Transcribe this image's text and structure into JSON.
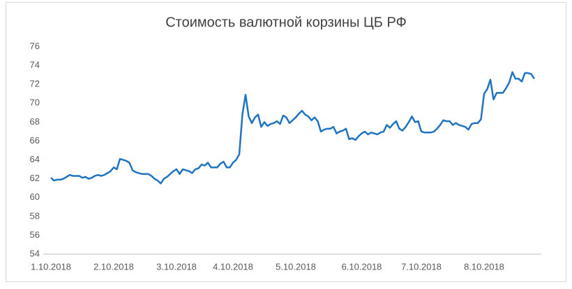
{
  "chart_data": {
    "type": "line",
    "title": "Стоимость валютной корзины ЦБ РФ",
    "categories": [
      "1.10.2018",
      null,
      null,
      null,
      null,
      null,
      null,
      null,
      null,
      null,
      null,
      null,
      null,
      null,
      null,
      null,
      null,
      null,
      null,
      null,
      "2.10.2018",
      null,
      null,
      null,
      null,
      null,
      null,
      null,
      null,
      null,
      null,
      null,
      null,
      null,
      null,
      null,
      null,
      null,
      null,
      null,
      "3.10.2018",
      null,
      null,
      null,
      null,
      null,
      null,
      null,
      null,
      null,
      null,
      null,
      null,
      null,
      null,
      null,
      null,
      null,
      "4.10.2018",
      null,
      null,
      null,
      null,
      null,
      null,
      null,
      null,
      null,
      null,
      null,
      null,
      null,
      null,
      null,
      null,
      null,
      null,
      null,
      "5.10.2018",
      null,
      null,
      null,
      null,
      null,
      null,
      null,
      null,
      null,
      null,
      null,
      null,
      null,
      null,
      null,
      null,
      null,
      null,
      null,
      null,
      "6.10.2018",
      null,
      null,
      null,
      null,
      null,
      null,
      null,
      null,
      null,
      null,
      null,
      null,
      null,
      null,
      null,
      null,
      null,
      null,
      "7.10.2018",
      null,
      null,
      null,
      null,
      null,
      null,
      null,
      null,
      null,
      null,
      null,
      null,
      null,
      null,
      null,
      null,
      null,
      null,
      null,
      "8.10.2018",
      null,
      null,
      null,
      null,
      null,
      null,
      null,
      null,
      null,
      null,
      null,
      null,
      null,
      null,
      null,
      null
    ],
    "series": [
      {
        "color": "#1f73c0",
        "values": [
          62.1,
          61.8,
          61.9,
          61.9,
          62.0,
          62.2,
          62.4,
          62.3,
          62.3,
          62.3,
          62.1,
          62.2,
          62.0,
          62.1,
          62.3,
          62.4,
          62.3,
          62.4,
          62.6,
          62.8,
          63.2,
          63.0,
          64.1,
          64.0,
          63.9,
          63.7,
          62.9,
          62.7,
          62.6,
          62.5,
          62.5,
          62.5,
          62.3,
          62.0,
          61.8,
          61.5,
          62.0,
          62.2,
          62.5,
          62.8,
          63.0,
          62.5,
          63.0,
          62.9,
          62.8,
          62.6,
          63.0,
          63.1,
          63.5,
          63.4,
          63.7,
          63.2,
          63.2,
          63.2,
          63.6,
          63.8,
          63.2,
          63.2,
          63.7,
          64.0,
          64.6,
          68.8,
          70.9,
          68.6,
          67.9,
          68.5,
          68.8,
          67.5,
          68.0,
          67.6,
          67.8,
          67.9,
          68.1,
          67.8,
          68.7,
          68.5,
          67.9,
          68.2,
          68.5,
          68.9,
          69.2,
          68.8,
          68.6,
          68.2,
          68.5,
          68.1,
          67.0,
          67.2,
          67.3,
          67.3,
          67.5,
          66.8,
          67.0,
          67.1,
          67.3,
          66.2,
          66.3,
          66.1,
          66.5,
          66.8,
          67.0,
          66.7,
          66.9,
          66.8,
          66.7,
          66.9,
          67.0,
          67.7,
          67.4,
          67.8,
          68.1,
          67.3,
          67.1,
          67.5,
          68.0,
          68.6,
          68.0,
          68.1,
          67.0,
          66.9,
          66.9,
          66.9,
          67.0,
          67.3,
          67.7,
          68.2,
          68.1,
          68.1,
          67.7,
          67.9,
          67.7,
          67.6,
          67.5,
          67.2,
          67.8,
          67.9,
          67.9,
          68.3,
          71.0,
          71.5,
          72.5,
          70.4,
          71.1,
          71.1,
          71.1,
          71.6,
          72.2,
          73.3,
          72.6,
          72.6,
          72.3,
          73.2,
          73.2,
          73.1,
          72.6
        ]
      }
    ],
    "ylim": [
      54,
      76
    ],
    "yticks": [
      54,
      56,
      58,
      60,
      62,
      64,
      66,
      68,
      70,
      72,
      74,
      76
    ],
    "grid": false
  }
}
